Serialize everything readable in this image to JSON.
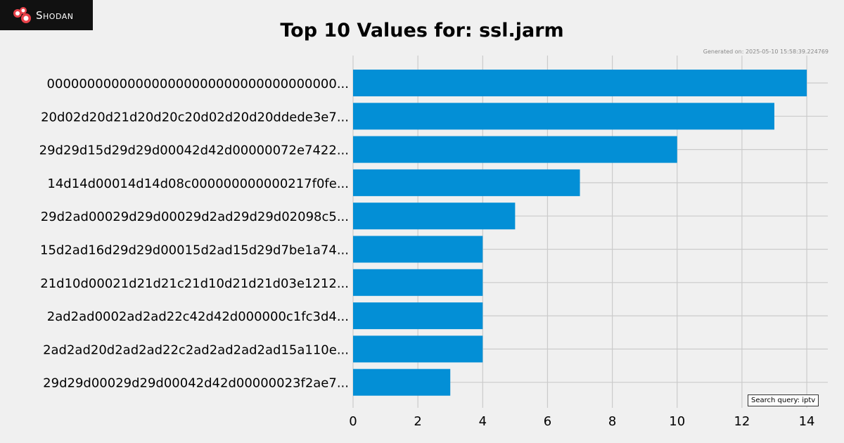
{
  "logo": {
    "text": "Shodan",
    "icon": "shodan-logo-icon"
  },
  "chart_data": {
    "type": "bar",
    "orientation": "horizontal",
    "title": "Top 10 Values for: ssl.jarm",
    "generated": "Generated on: 2025-05-10 15:58:39.224769",
    "categories": [
      "000000000000000000000000000000000000...",
      "20d02d20d21d20d20c20d02d20d20ddede3e7...",
      "29d29d15d29d29d00042d42d00000072e7422...",
      "14d14d00014d14d08c000000000000217f0fe...",
      "29d2ad00029d29d00029d2ad29d29d02098c5...",
      "15d2ad16d29d29d00015d2ad15d29d7be1a74...",
      "21d10d00021d21d21c21d10d21d21d03e1212...",
      "2ad2ad0002ad2ad22c42d42d000000c1fc3d4...",
      "2ad2ad20d2ad2ad22c2ad2ad2ad2ad15a110e...",
      "29d29d00029d29d00042d42d00000023f2ae7..."
    ],
    "values": [
      14,
      13,
      10,
      7,
      5,
      4,
      4,
      4,
      4,
      3
    ],
    "xticks": [
      "0",
      "2",
      "4",
      "6",
      "8",
      "10",
      "12",
      "14"
    ],
    "xlim": [
      0,
      14.65
    ],
    "grid": true,
    "bar_color": "#038fd6",
    "annotation": "Search query: iptv"
  }
}
